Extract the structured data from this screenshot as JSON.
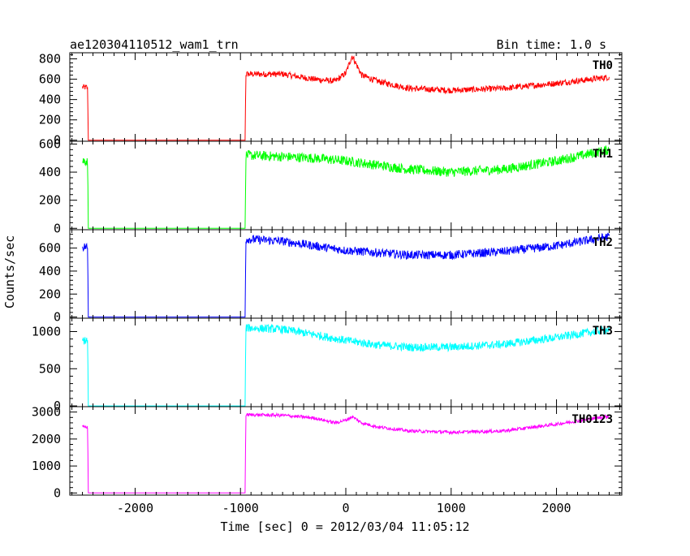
{
  "header": {
    "title": "ae120304110512_wam1_trn",
    "bin_time": "Bin time: 1.0 s"
  },
  "axes": {
    "xlabel": "Time [sec] 0 = 2012/03/04 11:05:12",
    "ylabel": "Counts/sec",
    "xlim": [
      -2620,
      2620
    ],
    "xticks": [
      -2000,
      -1000,
      0,
      1000,
      2000
    ]
  },
  "chart_data": {
    "type": "line",
    "title": "ae120304110512_wam1_trn",
    "xlabel": "Time [sec] 0 = 2012/03/04 11:05:12",
    "ylabel": "Counts/sec",
    "xlim": [
      -2620,
      2620
    ],
    "grid": false,
    "legend": "none",
    "note_data_gap": "counts ~0 between -2450 s and -950 s",
    "panels": [
      {
        "name": "TH0",
        "color": "#ff0000",
        "ylim": [
          -10,
          860
        ],
        "yticks": [
          0,
          200,
          400,
          600,
          800
        ],
        "noise": 30,
        "x": [
          -2500,
          -2460,
          -2450,
          -2445,
          -960,
          -955,
          -950,
          -600,
          -300,
          -100,
          0,
          60,
          150,
          300,
          600,
          1000,
          1500,
          2000,
          2500
        ],
        "y": [
          520,
          520,
          500,
          0,
          0,
          0,
          650,
          650,
          600,
          580,
          660,
          830,
          640,
          580,
          510,
          490,
          510,
          560,
          620
        ]
      },
      {
        "name": "TH1",
        "color": "#00ff00",
        "ylim": [
          -10,
          620
        ],
        "yticks": [
          0,
          200,
          400,
          600
        ],
        "noise": 35,
        "x": [
          -2500,
          -2460,
          -2450,
          -2445,
          -960,
          -955,
          -950,
          -600,
          -300,
          0,
          300,
          600,
          1000,
          1500,
          2000,
          2500
        ],
        "y": [
          480,
          480,
          460,
          0,
          0,
          0,
          520,
          510,
          500,
          480,
          450,
          420,
          400,
          420,
          480,
          560
        ],
        "note": "values read from plot"
      },
      {
        "name": "TH2",
        "color": "#0000ff",
        "ylim": [
          -10,
          760
        ],
        "yticks": [
          0,
          200,
          400,
          600
        ],
        "noise": 38,
        "x": [
          -2500,
          -2460,
          -2450,
          -2445,
          -960,
          -955,
          -950,
          -600,
          -300,
          0,
          300,
          600,
          1000,
          1500,
          2000,
          2500
        ],
        "y": [
          610,
          610,
          590,
          0,
          0,
          0,
          680,
          660,
          620,
          580,
          560,
          540,
          540,
          570,
          620,
          700
        ]
      },
      {
        "name": "TH3",
        "color": "#00ffff",
        "ylim": [
          -10,
          1180
        ],
        "yticks": [
          0,
          500,
          1000
        ],
        "noise": 55,
        "x": [
          -2500,
          -2460,
          -2450,
          -2445,
          -960,
          -955,
          -950,
          -600,
          -300,
          0,
          300,
          600,
          1000,
          1500,
          2000,
          2500
        ],
        "y": [
          880,
          880,
          860,
          0,
          0,
          0,
          1050,
          1030,
          960,
          880,
          820,
          790,
          790,
          830,
          920,
          1030
        ]
      },
      {
        "name": "TH0123",
        "color": "#ff00ff",
        "ylim": [
          -80,
          3200
        ],
        "yticks": [
          0,
          1000,
          2000,
          3000
        ],
        "noise": 60,
        "x": [
          -2500,
          -2460,
          -2450,
          -2445,
          -960,
          -955,
          -950,
          -600,
          -300,
          -100,
          0,
          60,
          150,
          300,
          600,
          1000,
          1500,
          2000,
          2500
        ],
        "y": [
          2450,
          2450,
          2400,
          0,
          0,
          0,
          2900,
          2880,
          2780,
          2600,
          2700,
          2830,
          2600,
          2450,
          2300,
          2250,
          2300,
          2550,
          2850
        ]
      }
    ]
  }
}
